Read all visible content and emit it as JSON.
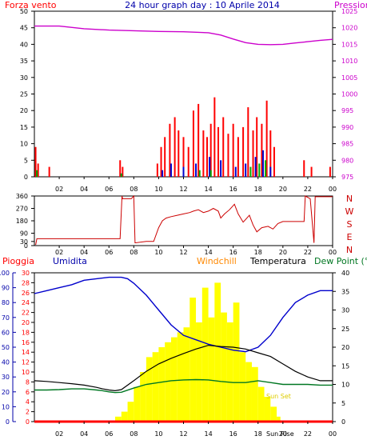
{
  "chart_data": [
    {
      "id": "wind",
      "type": "bar",
      "title": "24 hour graph day : 10 Aprile 2014",
      "left_label": "Forza vento",
      "right_label": "Pressione",
      "x_ticks": [
        "02",
        "04",
        "06",
        "08",
        "10",
        "12",
        "14",
        "16",
        "18",
        "20",
        "22",
        "00"
      ],
      "xlim": [
        0,
        24
      ],
      "ylim": [
        0,
        50
      ],
      "y_ticks": [
        0,
        5,
        10,
        15,
        20,
        25,
        30,
        35,
        40,
        45,
        50
      ],
      "y2lim": [
        975,
        1025
      ],
      "y2_ticks": [
        975,
        980,
        985,
        990,
        995,
        1000,
        1005,
        1010,
        1015,
        1020,
        1025
      ],
      "colors": {
        "gust": "#ff0000",
        "speed": "#0000cc",
        "calm": "#00aa00",
        "pressure": "#cc00cc"
      },
      "pressure": {
        "x": [
          0,
          2,
          4,
          6,
          8,
          10,
          12,
          14,
          15,
          16,
          17,
          18,
          19,
          20,
          21,
          22,
          23,
          24
        ],
        "y": [
          1020.5,
          1020.5,
          1019.7,
          1019.3,
          1019.1,
          1018.9,
          1018.8,
          1018.5,
          1017.8,
          1016.6,
          1015.5,
          1015,
          1014.9,
          1015,
          1015.4,
          1015.8,
          1016.2,
          1016.5
        ]
      },
      "gust": {
        "x": [
          0.1,
          0.3,
          1.2,
          6.9,
          7.1,
          9.9,
          10.2,
          10.5,
          10.9,
          11.3,
          11.6,
          12.0,
          12.4,
          12.8,
          13.2,
          13.6,
          13.9,
          14.2,
          14.5,
          14.8,
          15.2,
          15.6,
          16.0,
          16.4,
          16.8,
          17.2,
          17.6,
          17.9,
          18.3,
          18.7,
          19.0,
          19.3,
          21.7,
          22.3,
          23.8
        ],
        "y": [
          9,
          4,
          3,
          5,
          3,
          4,
          9,
          12,
          16,
          18,
          14,
          12,
          9,
          20,
          22,
          14,
          12,
          16,
          24,
          15,
          18,
          13,
          16,
          12,
          15,
          21,
          14,
          18,
          16,
          23,
          14,
          9,
          5,
          3,
          3
        ]
      },
      "speed": {
        "x": [
          7.0,
          10.3,
          11.0,
          12.0,
          13.0,
          14.1,
          15.0,
          16.2,
          17.0,
          17.8,
          18.4,
          19.0
        ],
        "y": [
          1,
          2,
          4,
          3,
          4,
          6,
          5,
          3,
          4,
          6,
          8,
          3
        ]
      },
      "calm": {
        "x": [
          0.2,
          7.0,
          13.3,
          14.2,
          17.4,
          18.1,
          18.6
        ],
        "y": [
          2,
          1,
          2,
          2,
          3,
          4,
          5
        ]
      }
    },
    {
      "id": "direction",
      "type": "line",
      "x_ticks": [
        "02",
        "04",
        "06",
        "08",
        "10",
        "12",
        "14",
        "16",
        "18",
        "20",
        "22",
        "00"
      ],
      "xlim": [
        0,
        24
      ],
      "ylim": [
        0,
        360
      ],
      "y_ticks": [
        0,
        30,
        90,
        180,
        270,
        360
      ],
      "compass": [
        "N",
        "W",
        "S",
        "E",
        "N"
      ],
      "color": "#cc0000",
      "series": {
        "x": [
          0.1,
          0.2,
          1,
          3,
          5,
          6.9,
          7.05,
          7.1,
          7.8,
          8,
          8.1,
          9,
          9.6,
          10,
          10.3,
          10.6,
          11,
          11.5,
          12,
          12.5,
          12.8,
          13.2,
          13.6,
          14,
          14.4,
          14.8,
          15,
          15.3,
          15.7,
          16.1,
          16.4,
          16.8,
          17,
          17.3,
          17.6,
          17.9,
          18.3,
          18.8,
          19.2,
          19.6,
          20,
          20.5,
          21,
          21.5,
          21.7,
          21.8,
          22.2,
          22.5,
          22.6,
          24
        ],
        "y": [
          5,
          50,
          50,
          50,
          50,
          50,
          360,
          340,
          340,
          360,
          20,
          30,
          30,
          130,
          180,
          200,
          210,
          220,
          230,
          240,
          250,
          260,
          240,
          250,
          270,
          250,
          200,
          230,
          260,
          300,
          230,
          170,
          190,
          220,
          150,
          100,
          130,
          140,
          120,
          160,
          175,
          175,
          175,
          175,
          175,
          360,
          340,
          20,
          355,
          355
        ]
      }
    },
    {
      "id": "temperature",
      "type": "line",
      "labels": [
        "Pioggia",
        "Umidita",
        "Windchill",
        "Temperatura",
        "Dew Point (°C"
      ],
      "x_ticks": [
        "02",
        "04",
        "06",
        "08",
        "10",
        "12",
        "14",
        "16",
        "18",
        "20",
        "22",
        "00"
      ],
      "xlim": [
        0,
        24
      ],
      "ylim_pioggia": [
        0,
        30
      ],
      "y_ticks_pioggia": [
        0,
        2,
        4,
        6,
        8,
        10,
        12,
        14,
        16,
        18,
        20,
        22,
        24,
        26,
        28,
        30
      ],
      "ylim_umidita": [
        0,
        100
      ],
      "y_ticks_umidita": [
        0,
        10,
        20,
        30,
        40,
        50,
        60,
        70,
        80,
        90,
        100
      ],
      "ylim_temp": [
        0,
        40
      ],
      "y_ticks_temp": [
        0,
        5,
        10,
        15,
        20,
        25,
        30,
        35,
        40
      ],
      "sun_rise_label": "Sun Rise",
      "sun_set_label": "Sun Set",
      "sun_rise_h": 6.5,
      "sun_set_h": 19.8,
      "colors": {
        "pioggia": "#ff0000",
        "umidita": "#0000cc",
        "windchill": "#ff8800",
        "temperatura": "#000000",
        "dewpoint": "#007722",
        "solar": "#ffff00"
      },
      "humidity": {
        "x": [
          0,
          1,
          2,
          3,
          4,
          5,
          6,
          7,
          7.5,
          8,
          9,
          10,
          11,
          12,
          13,
          14,
          15,
          16,
          17,
          18,
          19,
          20,
          21,
          22,
          23,
          24
        ],
        "y": [
          86,
          88,
          90,
          92,
          95,
          96,
          97,
          97,
          96,
          93,
          85,
          75,
          65,
          58,
          55,
          52,
          50,
          48,
          47,
          50,
          58,
          70,
          80,
          85,
          88,
          88
        ]
      },
      "temp": {
        "x": [
          0,
          1,
          2,
          3,
          4,
          5,
          5.5,
          6,
          6.5,
          7,
          8,
          9,
          10,
          11,
          12,
          13,
          14,
          15,
          16,
          17,
          18,
          19,
          20,
          21,
          22,
          23,
          24
        ],
        "y": [
          11,
          10.8,
          10.5,
          10.2,
          9.8,
          9.2,
          8.8,
          8.5,
          8.3,
          8.6,
          11,
          13.5,
          15.5,
          17,
          18.3,
          19.5,
          20.5,
          20.2,
          20,
          19.5,
          18.5,
          17.5,
          15.5,
          13.5,
          12,
          11,
          11
        ]
      },
      "dewpoint": {
        "x": [
          0,
          1,
          2,
          3,
          4,
          5,
          5.5,
          6,
          6.5,
          7,
          8,
          9,
          10,
          11,
          12,
          13,
          14,
          15,
          16,
          17,
          18,
          19,
          20,
          21,
          22,
          23,
          24
        ],
        "y": [
          8.5,
          8.5,
          8.6,
          8.8,
          8.8,
          8.5,
          8.3,
          8,
          7.8,
          7.9,
          9,
          10,
          10.5,
          11,
          11.2,
          11.3,
          11.2,
          10.8,
          10.5,
          10.5,
          11,
          10.5,
          10,
          10,
          10,
          9.8,
          9.8
        ]
      },
      "solar": {
        "x": [
          6,
          6.5,
          7,
          7.5,
          8,
          8.5,
          9,
          9.5,
          10,
          10.5,
          11,
          11.5,
          12,
          12.5,
          13,
          13.5,
          14,
          14.5,
          15,
          15.5,
          16,
          16.5,
          17,
          17.5,
          18,
          18.5,
          19,
          19.5,
          19.8
        ],
        "y": [
          0,
          1,
          2,
          4,
          7,
          10,
          13,
          14,
          15,
          16,
          17,
          18,
          19,
          25,
          20,
          27,
          21,
          28,
          22,
          20,
          24,
          14,
          12,
          11,
          7,
          5,
          3,
          1,
          0
        ]
      },
      "rain": {
        "x": [
          0,
          24
        ],
        "y": [
          0,
          0
        ]
      }
    }
  ]
}
